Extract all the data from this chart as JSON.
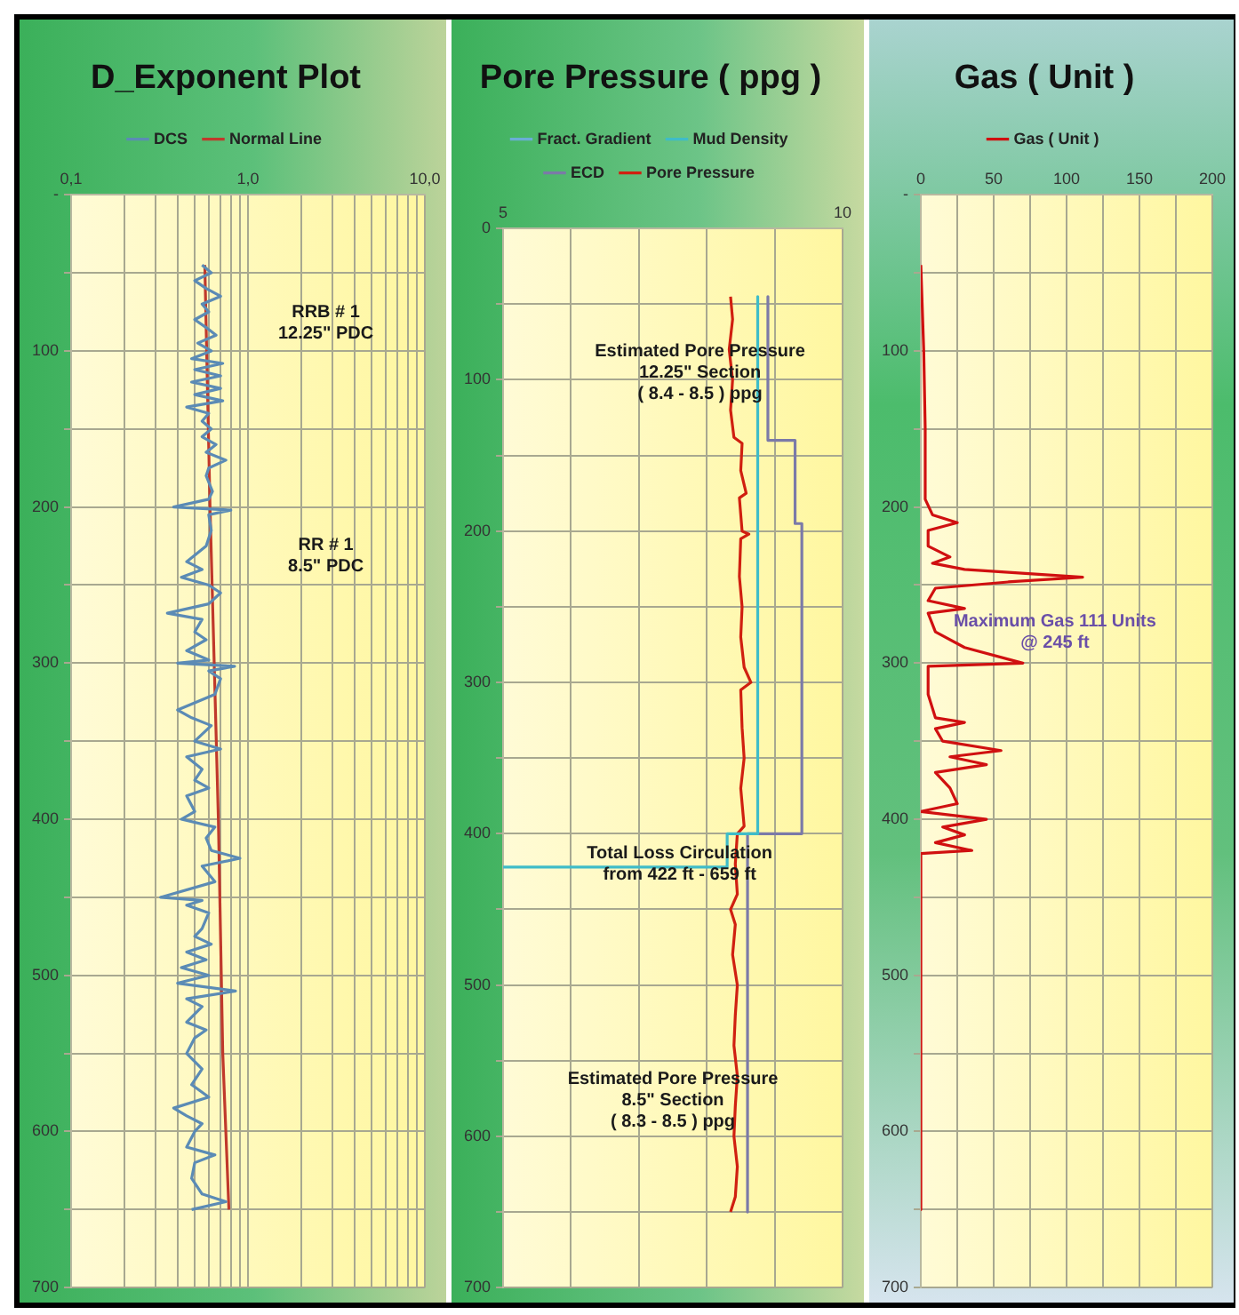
{
  "chart_data": [
    {
      "type": "line",
      "title": "D_Exponent Plot",
      "legend": "top",
      "grid": true,
      "log": "x",
      "marker": "none",
      "line_style": "solid",
      "xlim": [
        0.1,
        10
      ],
      "xticks": [
        {
          "value": 0.1,
          "label": "0,1"
        },
        {
          "value": 0.2,
          "label": null
        },
        {
          "value": 0.3,
          "label": null
        },
        {
          "value": 0.4,
          "label": null
        },
        {
          "value": 0.5,
          "label": null
        },
        {
          "value": 0.6,
          "label": null
        },
        {
          "value": 0.7,
          "label": null
        },
        {
          "value": 0.8,
          "label": null
        },
        {
          "value": 0.9,
          "label": null
        },
        {
          "value": 1,
          "label": "1,0"
        },
        {
          "value": 2,
          "label": null
        },
        {
          "value": 3,
          "label": null
        },
        {
          "value": 4,
          "label": null
        },
        {
          "value": 5,
          "label": null
        },
        {
          "value": 6,
          "label": null
        },
        {
          "value": 7,
          "label": null
        },
        {
          "value": 8,
          "label": null
        },
        {
          "value": 9,
          "label": null
        },
        {
          "value": 10,
          "label": "10,0"
        }
      ],
      "ylim": [
        700,
        0
      ],
      "yticks": [
        {
          "value": 0,
          "label": "-"
        },
        {
          "value": 50,
          "label": null
        },
        100,
        {
          "value": 150,
          "label": null
        },
        200,
        {
          "value": 250,
          "label": null
        },
        300,
        {
          "value": 350,
          "label": null
        },
        400,
        {
          "value": 450,
          "label": null
        },
        500,
        {
          "value": 550,
          "label": null
        },
        600,
        {
          "value": 650,
          "label": null
        },
        700
      ],
      "annotations": [
        "RRB # 1\n12.25\" PDC",
        "RR # 1\n8.5\" PDC"
      ],
      "series": [
        {
          "name": "DCS",
          "color": "#5b8bb5",
          "x": [
            0.55,
            0.62,
            0.5,
            0.58,
            0.7,
            0.55,
            0.6,
            0.5,
            0.58,
            0.66,
            0.52,
            0.62,
            0.48,
            0.72,
            0.5,
            0.7,
            0.48,
            0.7,
            0.5,
            0.72,
            0.45,
            0.6,
            0.55,
            0.62,
            0.55,
            0.66,
            0.58,
            0.75,
            0.6,
            0.58,
            0.63,
            0.6,
            0.38,
            0.8,
            0.6,
            0.62,
            0.58,
            0.45,
            0.55,
            0.42,
            0.6,
            0.7,
            0.6,
            0.35,
            0.55,
            0.5,
            0.58,
            0.45,
            0.6,
            0.4,
            0.84,
            0.6,
            0.7,
            0.65,
            0.4,
            0.48,
            0.62,
            0.5,
            0.7,
            0.45,
            0.55,
            0.5,
            0.6,
            0.45,
            0.5,
            0.42,
            0.65,
            0.58,
            0.62,
            0.9,
            0.55,
            0.65,
            0.32,
            0.55,
            0.45,
            0.6,
            0.55,
            0.5,
            0.62,
            0.45,
            0.58,
            0.42,
            0.6,
            0.4,
            0.85,
            0.45,
            0.55,
            0.45,
            0.58,
            0.5,
            0.45,
            0.55,
            0.48,
            0.6,
            0.38,
            0.45,
            0.55,
            0.5,
            0.45,
            0.65,
            0.5,
            0.48,
            0.55,
            0.75,
            0.48
          ],
          "values": [
            45,
            50,
            55,
            60,
            65,
            70,
            75,
            80,
            85,
            90,
            95,
            100,
            105,
            108,
            112,
            116,
            120,
            124,
            128,
            132,
            136,
            140,
            145,
            150,
            155,
            160,
            165,
            170,
            175,
            180,
            190,
            195,
            200,
            202,
            205,
            215,
            225,
            235,
            240,
            245,
            250,
            255,
            262,
            268,
            272,
            280,
            285,
            292,
            298,
            300,
            302,
            305,
            310,
            320,
            330,
            335,
            340,
            350,
            355,
            360,
            368,
            375,
            380,
            385,
            395,
            400,
            405,
            412,
            420,
            425,
            430,
            440,
            450,
            452,
            455,
            460,
            470,
            475,
            480,
            485,
            490,
            495,
            500,
            505,
            510,
            515,
            520,
            530,
            535,
            540,
            550,
            560,
            570,
            578,
            585,
            590,
            595,
            600,
            610,
            615,
            620,
            630,
            640,
            645,
            650
          ]
        },
        {
          "name": "Normal Line",
          "color": "#c0392b",
          "x": [
            0.57,
            0.61,
            0.68,
            0.72,
            0.78
          ],
          "values": [
            45,
            200,
            400,
            550,
            650
          ]
        }
      ]
    },
    {
      "type": "line",
      "title": "Pore Pressure ( ppg )",
      "legend": "top",
      "grid": true,
      "marker": "none",
      "line_style": "solid",
      "xlim": [
        5,
        10
      ],
      "xticks": [
        5,
        {
          "value": 6,
          "label": null
        },
        {
          "value": 7,
          "label": null
        },
        {
          "value": 8,
          "label": null
        },
        {
          "value": 9,
          "label": null
        },
        10
      ],
      "ylim": [
        700,
        0
      ],
      "yticks": [
        0,
        {
          "value": 50,
          "label": null
        },
        100,
        {
          "value": 150,
          "label": null
        },
        200,
        {
          "value": 250,
          "label": null
        },
        300,
        {
          "value": 350,
          "label": null
        },
        400,
        {
          "value": 450,
          "label": null
        },
        500,
        {
          "value": 550,
          "label": null
        },
        600,
        {
          "value": 650,
          "label": null
        },
        700
      ],
      "annotations": [
        "Estimated Pore Pressure\n12.25\" Section\n( 8.4 - 8.5 ) ppg",
        {
          "text": "Total Loss Circulation\nfrom 422 ft - 659 ft",
          "x": 7.6,
          "y": 420
        },
        "Estimated Pore Pressure\n8.5\" Section\n( 8.3 - 8.5 ) ppg"
      ],
      "series": [
        {
          "name": "Fract. Gradient",
          "color": "#6aaed6",
          "x": [
            null
          ],
          "values": [
            null
          ]
        },
        {
          "name": "Mud Density",
          "color": "#3fbcc8",
          "x": [
            8.75,
            8.75,
            8.3,
            8.3,
            5
          ],
          "values": [
            45,
            400,
            400,
            422,
            422
          ]
        },
        {
          "name": "ECD",
          "color": "#7b7aa8",
          "x": [
            8.9,
            8.9,
            9.3,
            9.3,
            9.4,
            9.4,
            8.6,
            8.6
          ],
          "values": [
            45,
            140,
            140,
            195,
            195,
            400,
            400,
            650
          ]
        },
        {
          "name": "Pore Pressure",
          "color": "#d02010",
          "x": [
            8.35,
            8.38,
            8.33,
            8.38,
            8.35,
            8.4,
            8.52,
            8.5,
            8.58,
            8.48,
            8.52,
            8.62,
            8.5,
            8.48,
            8.52,
            8.5,
            8.55,
            8.65,
            8.5,
            8.52,
            8.55,
            8.5,
            8.55,
            8.45,
            8.42,
            8.45,
            8.35,
            8.42,
            8.38,
            8.45,
            8.42,
            8.4,
            8.45,
            8.42,
            8.4,
            8.45,
            8.42,
            8.35
          ],
          "values": [
            45,
            60,
            80,
            100,
            120,
            138,
            142,
            160,
            175,
            178,
            200,
            202,
            205,
            230,
            250,
            270,
            290,
            300,
            305,
            330,
            350,
            370,
            395,
            400,
            420,
            440,
            450,
            460,
            480,
            500,
            520,
            540,
            560,
            580,
            600,
            620,
            640,
            650
          ]
        }
      ]
    },
    {
      "type": "line",
      "title": "Gas ( Unit )",
      "legend": "top",
      "grid": true,
      "marker": "none",
      "line_style": "solid",
      "xlim": [
        0,
        200
      ],
      "xticks": [
        0,
        {
          "value": 25,
          "label": null
        },
        50,
        {
          "value": 75,
          "label": null
        },
        100,
        {
          "value": 125,
          "label": null
        },
        150,
        {
          "value": 175,
          "label": null
        },
        200
      ],
      "ylim": [
        700,
        0
      ],
      "yticks": [
        {
          "value": 0,
          "label": "-"
        },
        {
          "value": 50,
          "label": null
        },
        100,
        {
          "value": 150,
          "label": null
        },
        200,
        {
          "value": 250,
          "label": null
        },
        300,
        {
          "value": 350,
          "label": null
        },
        400,
        {
          "value": 450,
          "label": null
        },
        500,
        {
          "value": 550,
          "label": null
        },
        600,
        {
          "value": 650,
          "label": null
        },
        700
      ],
      "annotations": [
        "Maximum Gas 111 Units\n@ 245 ft"
      ],
      "series": [
        {
          "name": "Gas ( Unit )",
          "color": "#d01010",
          "x": [
            0,
            2,
            3,
            3,
            8,
            25,
            5,
            5,
            20,
            8,
            30,
            111,
            60,
            10,
            5,
            30,
            5,
            10,
            30,
            70,
            5,
            5,
            10,
            30,
            10,
            15,
            55,
            20,
            45,
            10,
            20,
            25,
            0,
            45,
            15,
            30,
            10,
            35,
            0,
            0
          ],
          "values": [
            45,
            100,
            150,
            195,
            205,
            210,
            215,
            225,
            232,
            236,
            240,
            245,
            248,
            252,
            260,
            265,
            268,
            280,
            290,
            300,
            302,
            320,
            335,
            338,
            342,
            350,
            356,
            360,
            365,
            370,
            380,
            390,
            395,
            400,
            405,
            410,
            415,
            420,
            422,
            650
          ]
        }
      ]
    }
  ]
}
